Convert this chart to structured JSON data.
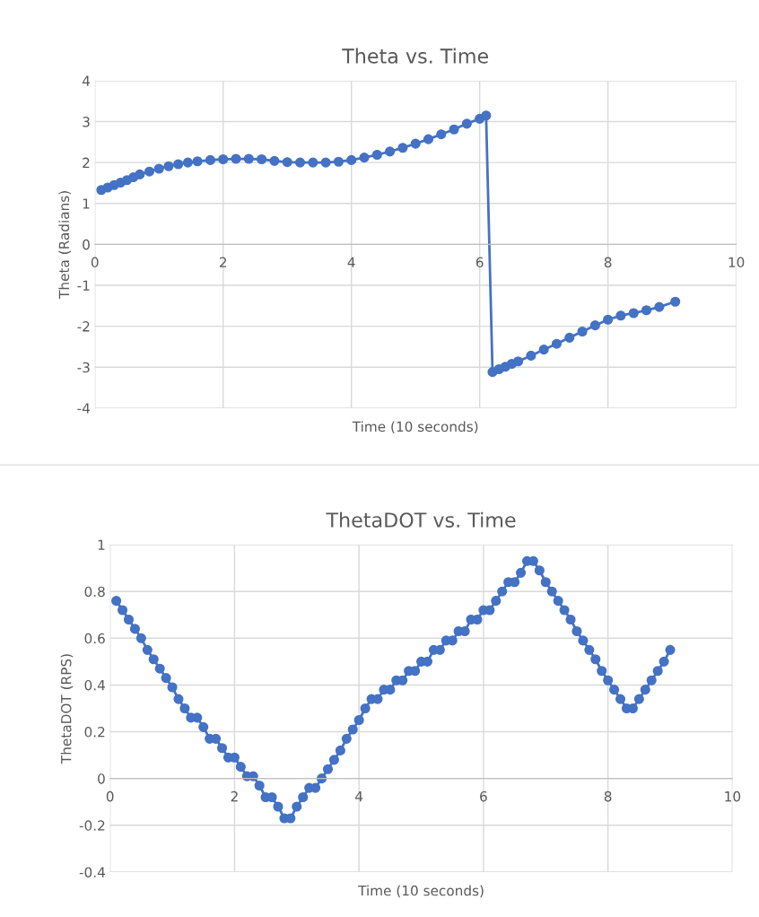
{
  "chart_data": [
    {
      "type": "line",
      "title": "Theta vs. Time",
      "xlabel": "Time (10 seconds)",
      "ylabel": "Theta (Radians)",
      "xlim": [
        0,
        10
      ],
      "xticks": [
        0,
        2,
        4,
        6,
        8,
        10
      ],
      "ylim": [
        -4,
        4
      ],
      "yticks": [
        -4,
        -3,
        -2,
        -1,
        0,
        1,
        2,
        3,
        4
      ],
      "grid": true,
      "marker": "circle",
      "line_style": "solid",
      "series": [
        {
          "color": "#4472c4",
          "x": [
            0.1,
            0.2,
            0.3,
            0.4,
            0.5,
            0.6,
            0.7,
            0.85,
            1.0,
            1.15,
            1.3,
            1.45,
            1.6,
            1.8,
            2.0,
            2.2,
            2.4,
            2.6,
            2.8,
            3.0,
            3.2,
            3.4,
            3.6,
            3.8,
            4.0,
            4.2,
            4.4,
            4.6,
            4.8,
            5.0,
            5.2,
            5.4,
            5.6,
            5.8,
            6.0,
            6.1,
            6.2,
            6.3,
            6.4,
            6.5,
            6.6,
            6.8,
            7.0,
            7.2,
            7.4,
            7.6,
            7.8,
            8.0,
            8.2,
            8.4,
            8.6,
            8.8,
            9.05
          ],
          "values": [
            1.33,
            1.39,
            1.45,
            1.51,
            1.57,
            1.64,
            1.71,
            1.78,
            1.85,
            1.91,
            1.96,
            2.0,
            2.03,
            2.06,
            2.08,
            2.09,
            2.09,
            2.08,
            2.04,
            2.01,
            2.0,
            2.0,
            2.0,
            2.02,
            2.06,
            2.12,
            2.19,
            2.27,
            2.36,
            2.46,
            2.57,
            2.69,
            2.81,
            2.95,
            3.07,
            3.15,
            -3.12,
            -3.05,
            -2.99,
            -2.92,
            -2.86,
            -2.72,
            -2.57,
            -2.43,
            -2.28,
            -2.13,
            -1.98,
            -1.84,
            -1.74,
            -1.68,
            -1.61,
            -1.53,
            -1.4
          ]
        }
      ]
    },
    {
      "type": "line",
      "title": "ThetaDOT vs. Time",
      "xlabel": "Time (10 seconds)",
      "ylabel": "ThetaDOT (RPS)",
      "xlim": [
        0,
        10
      ],
      "xticks": [
        0,
        2,
        4,
        6,
        8,
        10
      ],
      "ylim": [
        -0.4,
        1
      ],
      "yticks": [
        -0.4,
        -0.2,
        0,
        0.2,
        0.4,
        0.6,
        0.8,
        1
      ],
      "grid": true,
      "marker": "circle",
      "line_style": "solid",
      "series": [
        {
          "color": "#4472c4",
          "x": [
            0.1,
            0.2,
            0.3,
            0.4,
            0.5,
            0.6,
            0.7,
            0.8,
            0.9,
            1.0,
            1.1,
            1.2,
            1.3,
            1.4,
            1.5,
            1.6,
            1.7,
            1.8,
            1.9,
            2.0,
            2.1,
            2.2,
            2.3,
            2.4,
            2.5,
            2.6,
            2.7,
            2.8,
            2.9,
            3.0,
            3.1,
            3.2,
            3.3,
            3.4,
            3.5,
            3.6,
            3.7,
            3.8,
            3.9,
            4.0,
            4.1,
            4.2,
            4.3,
            4.4,
            4.5,
            4.6,
            4.7,
            4.8,
            4.9,
            5.0,
            5.1,
            5.2,
            5.3,
            5.4,
            5.5,
            5.6,
            5.7,
            5.8,
            5.9,
            6.0,
            6.1,
            6.2,
            6.3,
            6.4,
            6.5,
            6.6,
            6.7,
            6.8,
            6.9,
            7.0,
            7.1,
            7.2,
            7.3,
            7.4,
            7.5,
            7.6,
            7.7,
            7.8,
            7.9,
            8.0,
            8.1,
            8.2,
            8.3,
            8.4,
            8.5,
            8.6,
            8.7,
            8.8,
            8.9,
            9.0
          ],
          "values": [
            0.76,
            0.72,
            0.68,
            0.64,
            0.6,
            0.55,
            0.51,
            0.47,
            0.43,
            0.39,
            0.34,
            0.3,
            0.26,
            0.26,
            0.22,
            0.17,
            0.17,
            0.13,
            0.09,
            0.09,
            0.05,
            0.01,
            0.01,
            -0.03,
            -0.08,
            -0.08,
            -0.12,
            -0.17,
            -0.17,
            -0.12,
            -0.08,
            -0.04,
            -0.04,
            0.0,
            0.04,
            0.08,
            0.12,
            0.17,
            0.21,
            0.25,
            0.3,
            0.34,
            0.34,
            0.38,
            0.38,
            0.42,
            0.42,
            0.46,
            0.46,
            0.5,
            0.5,
            0.55,
            0.55,
            0.59,
            0.59,
            0.63,
            0.63,
            0.68,
            0.68,
            0.72,
            0.72,
            0.76,
            0.8,
            0.84,
            0.84,
            0.88,
            0.93,
            0.93,
            0.89,
            0.84,
            0.8,
            0.76,
            0.72,
            0.68,
            0.63,
            0.59,
            0.55,
            0.51,
            0.46,
            0.42,
            0.38,
            0.34,
            0.3,
            0.3,
            0.34,
            0.38,
            0.42,
            0.46,
            0.5,
            0.55
          ]
        }
      ]
    }
  ]
}
